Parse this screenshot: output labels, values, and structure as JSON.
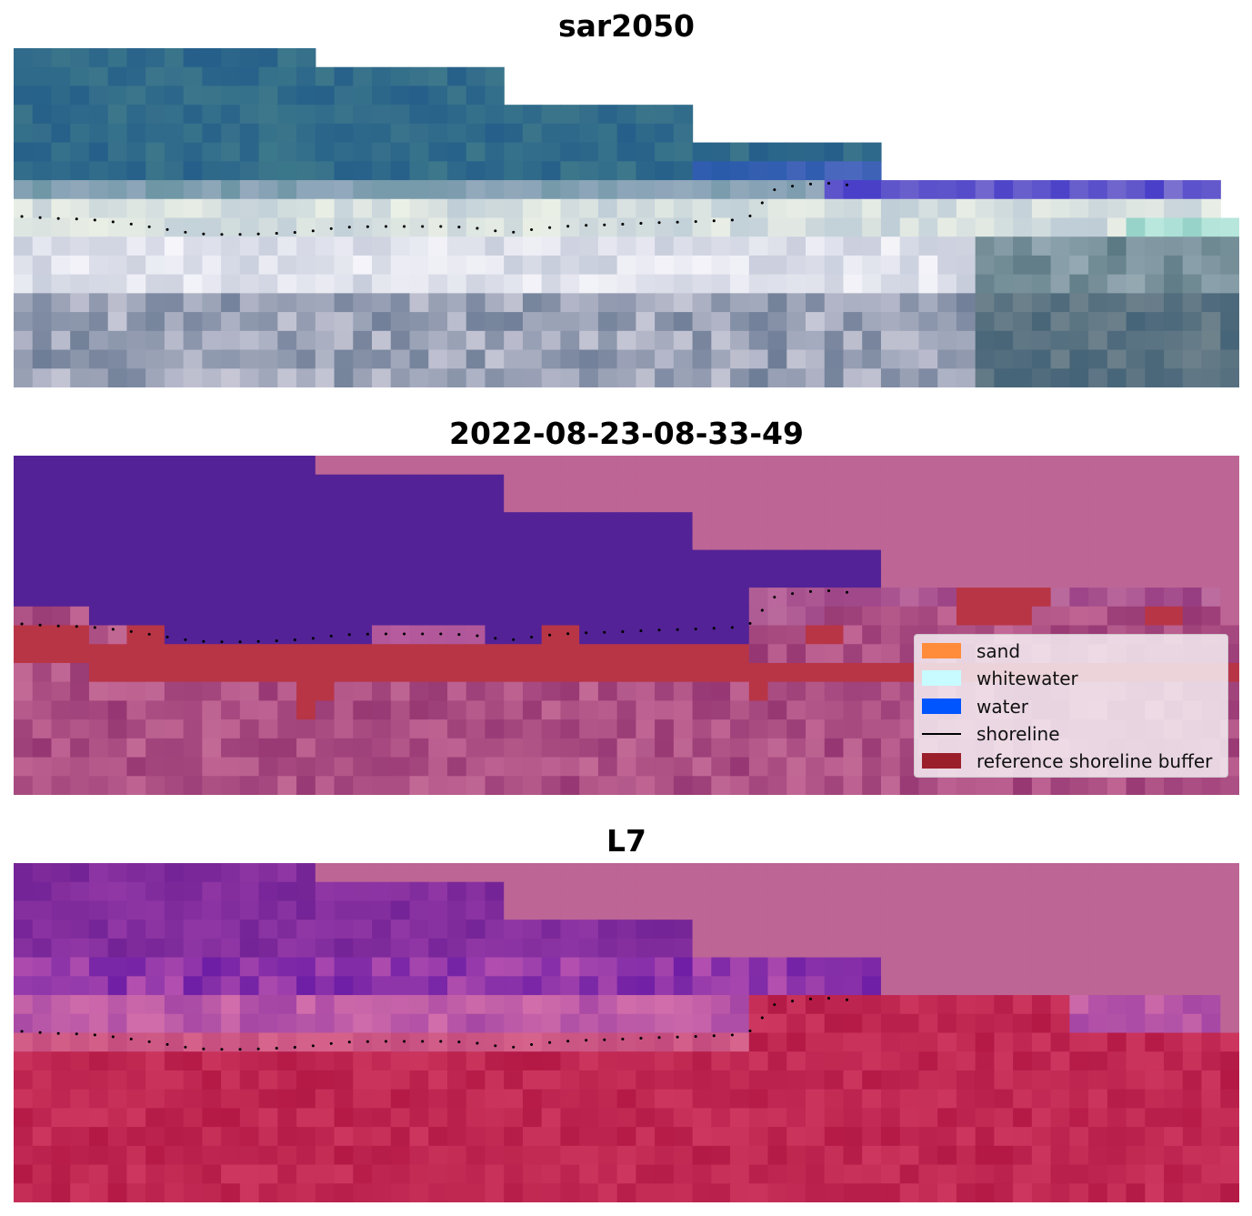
{
  "panels": [
    {
      "title": "sar2050",
      "kind": "rgb"
    },
    {
      "title": "2022-08-23-08-33-49",
      "kind": "classification"
    },
    {
      "title": "L7",
      "kind": "index"
    }
  ],
  "legend": {
    "items": [
      {
        "label": "sand",
        "color": "#ff8c3a",
        "type": "patch"
      },
      {
        "label": "whitewater",
        "color": "#c8fbff",
        "type": "patch"
      },
      {
        "label": "water",
        "color": "#0055ff",
        "type": "patch"
      },
      {
        "label": "shoreline",
        "color": "#000000",
        "type": "line"
      },
      {
        "label": "reference shoreline buffer",
        "color": "#9a1f2a",
        "type": "patch"
      }
    ]
  },
  "colors": {
    "nodata": "#bd6595",
    "water_class": "#532296",
    "buffer": "#b83546",
    "shoreline": "#000000"
  }
}
